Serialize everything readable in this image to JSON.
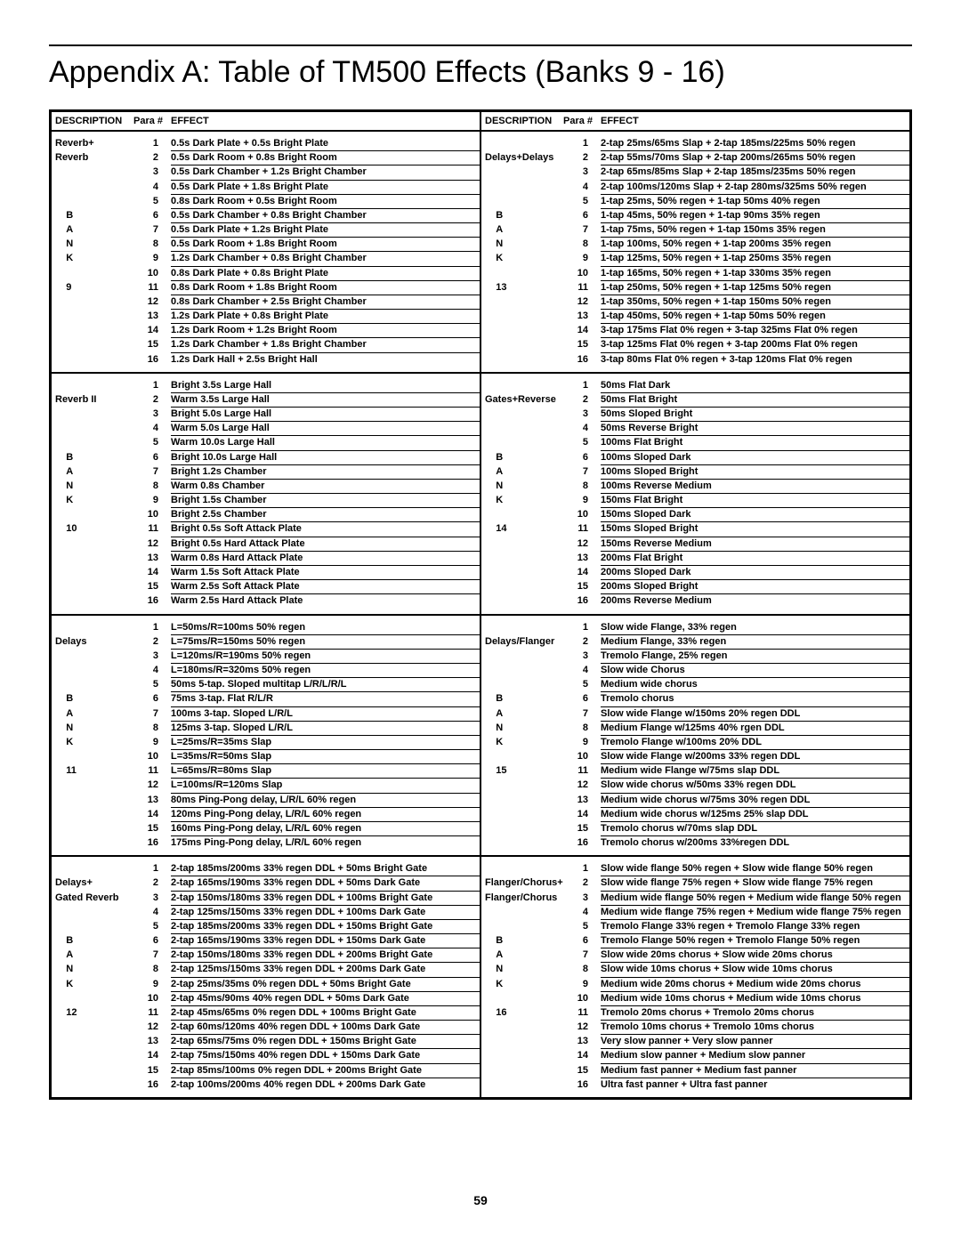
{
  "title": "Appendix A: Table of TM500 Effects (Banks 9 - 16)",
  "page_number": "59",
  "headers": {
    "description": "DESCRIPTION",
    "para": "Para #",
    "effect": "EFFECT"
  },
  "bank_label_letters": [
    "B",
    "A",
    "N",
    "K"
  ],
  "left_sections": [
    {
      "desc_labels": [
        "Reverb+",
        "Reverb"
      ],
      "bank_number": "9",
      "effects": [
        "0.5s Dark Plate + 0.5s Bright Plate",
        "0.5s Dark Room + 0.8s Bright Room",
        "0.5s Dark Chamber + 1.2s Bright Chamber",
        "0.5s Dark Plate + 1.8s Bright Plate",
        "0.8s Dark Room + 0.5s Bright Room",
        "0.5s Dark Chamber + 0.8s Bright Chamber",
        "0.5s Dark Plate + 1.2s Bright Plate",
        "0.5s Dark Room + 1.8s Bright Room",
        "1.2s Dark Chamber + 0.8s Bright Chamber",
        "0.8s Dark Plate + 0.8s Bright Plate",
        "0.8s Dark Room + 1.8s Bright Room",
        "0.8s Dark Chamber + 2.5s Bright Chamber",
        "1.2s Dark Plate + 0.8s Bright Plate",
        "1.2s Dark Room + 1.2s Bright Room",
        "1.2s Dark Chamber + 1.8s Bright Chamber",
        "1.2s Dark Hall + 2.5s Bright Hall"
      ]
    },
    {
      "desc_labels": [
        "",
        "Reverb II"
      ],
      "bank_number": "10",
      "effects": [
        "Bright 3.5s Large Hall",
        "Warm 3.5s Large Hall",
        "Bright 5.0s Large Hall",
        "Warm 5.0s Large Hall",
        "Warm 10.0s Large Hall",
        "Bright 10.0s Large Hall",
        "Bright 1.2s Chamber",
        "Warm 0.8s Chamber",
        "Bright 1.5s Chamber",
        "Bright 2.5s Chamber",
        "Bright 0.5s Soft Attack Plate",
        "Bright 0.5s Hard Attack Plate",
        "Warm 0.8s Hard Attack Plate",
        "Warm 1.5s Soft Attack Plate",
        "Warm 2.5s Soft Attack Plate",
        "Warm 2.5s Hard Attack Plate"
      ]
    },
    {
      "desc_labels": [
        "",
        "Delays"
      ],
      "bank_number": "11",
      "effects": [
        "L=50ms/R=100ms 50% regen",
        "L=75ms/R=150ms 50% regen",
        "L=120ms/R=190ms 50% regen",
        "L=180ms/R=320ms 50% regen",
        "50ms 5-tap.  Sloped multitap L/R/L/R/L",
        "75ms 3-tap. Flat R/L/R",
        "100ms 3-tap. Sloped L/R/L",
        "125ms 3-tap. Sloped L/R/L",
        "L=25ms/R=35ms Slap",
        "L=35ms/R=50ms Slap",
        "L=65ms/R=80ms Slap",
        "L=100ms/R=120ms Slap",
        "80ms Ping-Pong delay, L/R/L 60% regen",
        "120ms Ping-Pong delay, L/R/L 60% regen",
        "160ms Ping-Pong delay, L/R/L 60% regen",
        "175ms Ping-Pong delay, L/R/L 60% regen"
      ]
    },
    {
      "desc_labels": [
        "",
        "Delays+",
        "Gated Reverb"
      ],
      "bank_number": "12",
      "effects": [
        "2-tap 185ms/200ms 33% regen DDL + 50ms Bright Gate",
        "2-tap 165ms/190ms 33% regen DDL + 50ms Dark Gate",
        "2-tap 150ms/180ms 33% regen DDL + 100ms Bright Gate",
        "2-tap 125ms/150ms 33% regen DDL + 100ms Dark Gate",
        "2-tap 185ms/200ms 33% regen DDL + 150ms Bright Gate",
        "2-tap 165ms/190ms 33% regen DDL + 150ms Dark Gate",
        "2-tap 150ms/180ms 33% regen DDL + 200ms Bright Gate",
        "2-tap 125ms/150ms 33% regen DDL + 200ms Dark Gate",
        "2-tap 25ms/35ms 0% regen DDL + 50ms Bright Gate",
        "2-tap 45ms/90ms 40% regen DDL + 50ms Dark Gate",
        "2-tap 45ms/65ms 0% regen DDL + 100ms Bright Gate",
        "2-tap 60ms/120ms 40% regen DDL + 100ms Dark Gate",
        "2-tap 65ms/75ms 0% regen DDL + 150ms Bright Gate",
        "2-tap 75ms/150ms 40% regen DDL + 150ms Dark Gate",
        "2-tap 85ms/100ms 0% regen DDL + 200ms Bright Gate",
        "2-tap 100ms/200ms 40% regen DDL + 200ms Dark Gate"
      ]
    }
  ],
  "right_sections": [
    {
      "desc_labels": [
        "",
        "Delays+Delays"
      ],
      "bank_number": "13",
      "effects": [
        "2-tap 25ms/65ms Slap + 2-tap 185ms/225ms 50% regen",
        "2-tap 55ms/70ms Slap + 2-tap 200ms/265ms 50% regen",
        "2-tap 65ms/85ms Slap + 2-tap 185ms/235ms 50% regen",
        "2-tap 100ms/120ms Slap + 2-tap 280ms/325ms 50% regen",
        "1-tap 25ms, 50% regen + 1-tap 50ms 40% regen",
        "1-tap 45ms, 50% regen + 1-tap 90ms 35% regen",
        "1-tap 75ms, 50% regen + 1-tap 150ms 35% regen",
        "1-tap 100ms, 50% regen + 1-tap 200ms 35% regen",
        "1-tap 125ms, 50% regen + 1-tap 250ms 35% regen",
        "1-tap 165ms, 50% regen + 1-tap 330ms 35% regen",
        "1-tap 250ms, 50% regen + 1-tap 125ms 50% regen",
        "1-tap 350ms, 50% regen + 1-tap 150ms 50% regen",
        "1-tap 450ms, 50% regen + 1-tap 50ms 50% regen",
        "3-tap 175ms Flat 0% regen + 3-tap 325ms Flat 0% regen",
        "3-tap 125ms Flat 0% regen + 3-tap 200ms Flat 0% regen",
        "3-tap 80ms Flat 0% regen + 3-tap 120ms Flat 0% regen"
      ]
    },
    {
      "desc_labels": [
        "",
        "Gates+Reverse"
      ],
      "bank_number": "14",
      "effects": [
        "50ms Flat Dark",
        "50ms Flat Bright",
        "50ms Sloped Bright",
        "50ms Reverse Bright",
        "100ms Flat Bright",
        "100ms Sloped Dark",
        "100ms Sloped Bright",
        "100ms Reverse Medium",
        "150ms Flat Bright",
        "150ms Sloped Dark",
        "150ms Sloped Bright",
        "150ms Reverse Medium",
        "200ms Flat Bright",
        "200ms Sloped Dark",
        "200ms Sloped Bright",
        "200ms Reverse Medium"
      ]
    },
    {
      "desc_labels": [
        "",
        "Delays/Flanger"
      ],
      "bank_number": "15",
      "effects": [
        "Slow wide Flange, 33% regen",
        "Medium Flange, 33% regen",
        "Tremolo Flange, 25% regen",
        "Slow wide Chorus",
        "Medium wide chorus",
        "Tremolo chorus",
        "Slow wide Flange w/150ms 20% regen DDL",
        "Medium Flange w/125ms 40% rgen DDL",
        "Tremolo Flange w/100ms 20% DDL",
        "Slow wide Flange w/200ms 33% regen DDL",
        "Medium wide Flange w/75ms slap DDL",
        "Slow wide chorus w/50ms 33% regen DDL",
        "Medium wide chorus w/75ms 30% regen DDL",
        "Medium wide chorus w/125ms 25% slap DDL",
        "Tremolo chorus w/70ms slap DDL",
        "Tremolo chorus w/200ms 33%regen DDL"
      ]
    },
    {
      "desc_labels": [
        "",
        "Flanger/Chorus+",
        "Flanger/Chorus"
      ],
      "bank_number": "16",
      "effects": [
        "Slow wide flange 50% regen + Slow wide flange 50% regen",
        "Slow wide flange 75% regen + Slow wide flange 75% regen",
        "Medium wide flange 50% regen + Medium wide flange 50% regen",
        "Medium wide flange 75% regen + Medium wide flange 75% regen",
        "Tremolo Flange 33% regen + Tremolo Flange 33% regen",
        "Tremolo Flange 50% regen + Tremolo Flange 50% regen",
        "Slow wide 20ms chorus + Slow wide 20ms chorus",
        "Slow wide 10ms chorus + Slow wide 10ms chorus",
        "Medium wide 20ms chorus + Medium wide 20ms chorus",
        "Medium wide 10ms chorus + Medium wide 10ms chorus",
        "Tremolo 20ms chorus + Tremolo 20ms chorus",
        "Tremolo 10ms chorus + Tremolo 10ms chorus",
        "Very slow panner + Very slow panner",
        "Medium slow panner + Medium slow panner",
        "Medium fast panner + Medium fast panner",
        "Ultra fast panner + Ultra fast panner"
      ]
    }
  ]
}
